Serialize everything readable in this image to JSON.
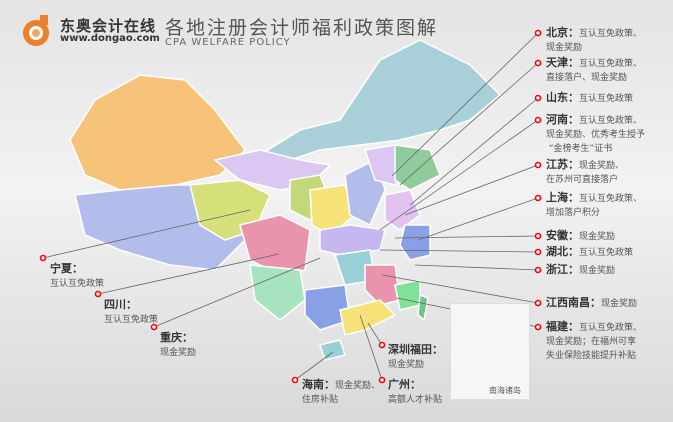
{
  "header": {
    "brand": "东奥会计在线",
    "url": "www.dongao.com",
    "title": "各地注册会计师福利政策图解",
    "subtitle": "CPA WELFARE POLICY"
  },
  "colors": {
    "accent": "#e8812a",
    "marker": "#ff0000"
  },
  "inset_label": "南海诸岛",
  "regions": [
    {
      "name": "北京：",
      "policy": "互认互免政策、",
      "policy2": "现金奖励"
    },
    {
      "name": "天津：",
      "policy": "互认互免政策、",
      "policy2": "直接落户、现金奖励"
    },
    {
      "name": "山东：",
      "policy": "互认互免政策"
    },
    {
      "name": "河南：",
      "policy": "互认互免政策、",
      "policy2": "现金奖励、优秀考生授予",
      "policy3": "“金榜考生”证书"
    },
    {
      "name": "江苏：",
      "policy": "现金奖励、",
      "policy2": "在苏州可直接落户"
    },
    {
      "name": "上海：",
      "policy": "互认互免政策、",
      "policy2": "增加落户积分"
    },
    {
      "name": "安徽：",
      "policy": "现金奖励"
    },
    {
      "name": "湖北：",
      "policy": "互认互免政策"
    },
    {
      "name": "浙江：",
      "policy": "现金奖励"
    },
    {
      "name": "江西南昌：",
      "policy": "现金奖励"
    },
    {
      "name": "福建：",
      "policy": "互认互免政策、",
      "policy2": "现金奖励；在福州可享",
      "policy3": "失业保险技能提升补贴"
    },
    {
      "name": "宁夏：",
      "policy": "互认互免政策"
    },
    {
      "name": "四川：",
      "policy": "互认互免政策"
    },
    {
      "name": "重庆：",
      "policy": "现金奖励"
    },
    {
      "name": "海南：",
      "policy": "现金奖励、",
      "policy2": "住房补贴"
    },
    {
      "name": "广州：",
      "policy": "高额人才补贴"
    },
    {
      "name": "深圳福田：",
      "policy": "现金奖励"
    }
  ]
}
